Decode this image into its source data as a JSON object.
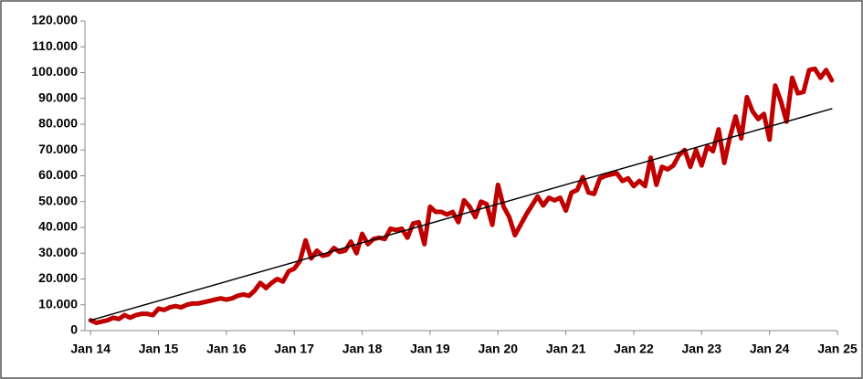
{
  "chart_data": {
    "type": "line",
    "x": [
      0,
      1,
      2,
      3,
      4,
      5,
      6,
      7,
      8,
      9,
      10,
      11,
      12,
      13,
      14,
      15,
      16,
      17,
      18,
      19,
      20,
      21,
      22,
      23,
      24,
      25,
      26,
      27,
      28,
      29,
      30,
      31,
      32,
      33,
      34,
      35,
      36,
      37,
      38,
      39,
      40,
      41,
      42,
      43,
      44,
      45,
      46,
      47,
      48,
      49,
      50,
      51,
      52,
      53,
      54,
      55,
      56,
      57,
      58,
      59,
      60,
      61,
      62,
      63,
      64,
      65,
      66,
      67,
      68,
      69,
      70,
      71,
      72,
      73,
      74,
      75,
      76,
      77,
      78,
      79,
      80,
      81,
      82,
      83,
      84,
      85,
      86,
      87,
      88,
      89,
      90,
      91,
      92,
      93,
      94,
      95,
      96,
      97,
      98,
      99,
      100,
      101,
      102,
      103,
      104,
      105,
      106,
      107,
      108,
      109,
      110,
      111,
      112,
      113,
      114,
      115,
      116,
      117,
      118,
      119,
      120,
      121,
      122,
      123,
      124,
      125,
      126,
      127,
      128,
      129,
      130,
      131
    ],
    "series": [
      {
        "color": "#c00000",
        "values": [
          4000,
          3000,
          3500,
          4000,
          5000,
          4500,
          6000,
          5000,
          6000,
          6500,
          6500,
          6000,
          8500,
          8000,
          9000,
          9500,
          9000,
          10000,
          10500,
          10500,
          11000,
          11500,
          12000,
          12500,
          12000,
          12500,
          13500,
          14000,
          13500,
          15500,
          18500,
          16500,
          18500,
          20000,
          19000,
          23000,
          24000,
          27000,
          35000,
          28000,
          31000,
          29000,
          29500,
          32000,
          30500,
          31000,
          34500,
          30000,
          37500,
          33500,
          35500,
          36000,
          35500,
          39500,
          39000,
          39500,
          36000,
          41500,
          42000,
          33500,
          48000,
          46000,
          46000,
          45000,
          46000,
          42000,
          50500,
          48000,
          44000,
          50000,
          49000,
          41000,
          56500,
          48000,
          44000,
          37000,
          41000,
          45000,
          48500,
          52000,
          48500,
          51500,
          50500,
          51500,
          46500,
          53500,
          54500,
          59500,
          53500,
          53000,
          59000,
          60000,
          60500,
          61000,
          58000,
          59000,
          56000,
          58000,
          56000,
          67000,
          56500,
          63500,
          62500,
          64000,
          68000,
          70000,
          63500,
          70000,
          64000,
          71500,
          69500,
          78000,
          65000,
          75000,
          83000,
          74500,
          90500,
          85000,
          82000,
          84000,
          74000,
          95000,
          89000,
          81000,
          98000,
          92000,
          92500,
          101000,
          101500,
          98000,
          101000,
          97000
        ]
      }
    ],
    "trendline": {
      "x": [
        0,
        131
      ],
      "values": [
        4000,
        86000
      ],
      "color": "#000000"
    },
    "xlim": [
      -1,
      132
    ],
    "xticks": [
      {
        "value": 0,
        "label": "Jan 14"
      },
      {
        "value": 12,
        "label": "Jan 15"
      },
      {
        "value": 24,
        "label": "Jan 16"
      },
      {
        "value": 36,
        "label": "Jan 17"
      },
      {
        "value": 48,
        "label": "Jan 18"
      },
      {
        "value": 60,
        "label": "Jan 19"
      },
      {
        "value": 72,
        "label": "Jan 20"
      },
      {
        "value": 84,
        "label": "Jan 21"
      },
      {
        "value": 96,
        "label": "Jan 22"
      },
      {
        "value": 108,
        "label": "Jan 23"
      },
      {
        "value": 120,
        "label": "Jan 24"
      },
      {
        "value": 132,
        "label": "Jan 25"
      }
    ],
    "ylim": [
      0,
      120000
    ],
    "yticks": [
      0,
      {
        "value": 10000,
        "label": "10.000"
      },
      {
        "value": 20000,
        "label": "20.000"
      },
      {
        "value": 30000,
        "label": "30.000"
      },
      {
        "value": 40000,
        "label": "40.000"
      },
      {
        "value": 50000,
        "label": "50.000"
      },
      {
        "value": 60000,
        "label": "60.000"
      },
      {
        "value": 70000,
        "label": "70.000"
      },
      {
        "value": 80000,
        "label": "80.000"
      },
      {
        "value": 90000,
        "label": "90.000"
      },
      {
        "value": 100000,
        "label": "100.000"
      },
      {
        "value": 110000,
        "label": "110.000"
      },
      {
        "value": 120000,
        "label": "120.000"
      }
    ],
    "grid": false
  }
}
